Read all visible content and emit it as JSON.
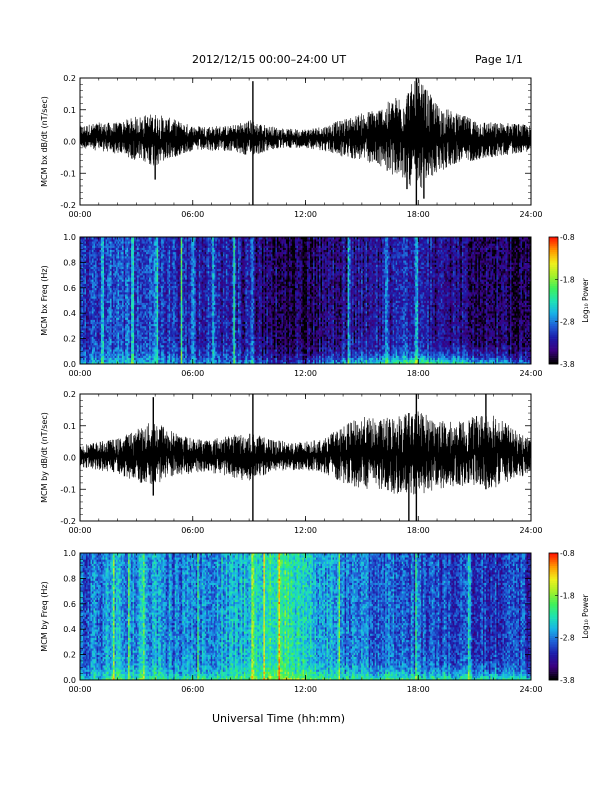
{
  "header": {
    "title": "2012/12/15  00:00–24:00 UT",
    "page": "Page 1/1"
  },
  "colors": {
    "trace": "#000000",
    "axes": "#000000",
    "background": "#ffffff",
    "spectrogram_floor": "#000000",
    "spectrogram_palette": [
      "#000000",
      "#3b007f",
      "#1d1aa8",
      "#1f5fd6",
      "#18b3e8",
      "#1fe3b3",
      "#3ff05a",
      "#a6f02a",
      "#f0f01c",
      "#ff9a00",
      "#ff1a00"
    ]
  },
  "chart_data": [
    {
      "type": "line",
      "ylabel": "MCM bx dB/dt (nT/sec)",
      "xlim": [
        0,
        24
      ],
      "ylim": [
        -0.2,
        0.2
      ],
      "x_ticks": [
        "00:00",
        "06:00",
        "12:00",
        "18:00",
        "24:00"
      ],
      "y_ticks": [
        "-0.2",
        "-0.1",
        "0.0",
        "0.1",
        "0.2"
      ],
      "envelope": {
        "x": [
          0,
          1,
          2,
          3,
          4,
          5,
          6,
          7,
          8,
          9,
          10,
          11,
          12,
          13,
          14,
          15,
          16,
          17,
          18,
          19,
          20,
          21,
          22,
          23,
          24
        ],
        "min": [
          -0.02,
          -0.03,
          -0.04,
          -0.06,
          -0.08,
          -0.05,
          -0.03,
          -0.03,
          -0.03,
          -0.05,
          -0.03,
          -0.02,
          -0.02,
          -0.03,
          -0.05,
          -0.06,
          -0.08,
          -0.12,
          -0.16,
          -0.1,
          -0.07,
          -0.06,
          -0.05,
          -0.04,
          -0.03
        ],
        "max": [
          0.05,
          0.06,
          0.06,
          0.08,
          0.09,
          0.07,
          0.05,
          0.05,
          0.05,
          0.07,
          0.05,
          0.04,
          0.04,
          0.05,
          0.07,
          0.09,
          0.11,
          0.15,
          0.2,
          0.12,
          0.09,
          0.07,
          0.06,
          0.06,
          0.05
        ]
      },
      "spikes": [
        {
          "x": 4.0,
          "min": -0.12,
          "max": 0.07
        },
        {
          "x": 9.2,
          "min": -0.2,
          "max": 0.19
        },
        {
          "x": 17.4,
          "min": -0.15,
          "max": 0.12
        },
        {
          "x": 17.9,
          "min": -0.2,
          "max": 0.21
        },
        {
          "x": 18.3,
          "min": -0.18,
          "max": 0.15
        }
      ]
    },
    {
      "type": "heatmap",
      "ylabel": "MCM bx Freq (Hz)",
      "colorbar_label": "Log₁₀ Power",
      "colorbar_ticks": [
        "-0.8",
        "-1.8",
        "-2.8",
        "-3.8"
      ],
      "colorbar_range": [
        -3.8,
        -0.8
      ],
      "xlim": [
        0,
        24
      ],
      "ylim": [
        0,
        1.0
      ],
      "x_ticks": [
        "00:00",
        "06:00",
        "12:00",
        "18:00",
        "24:00"
      ],
      "y_ticks": [
        "0.0",
        "0.2",
        "0.4",
        "0.6",
        "0.8",
        "1.0"
      ],
      "hours": [
        0,
        1,
        2,
        3,
        4,
        5,
        6,
        7,
        8,
        9,
        10,
        11,
        12,
        13,
        14,
        15,
        16,
        17,
        18,
        19,
        20,
        21,
        22,
        23,
        24
      ],
      "base_level": [
        -3.1,
        -3.1,
        -3.0,
        -3.0,
        -3.0,
        -3.1,
        -3.2,
        -3.2,
        -3.2,
        -3.3,
        -3.5,
        -3.6,
        -3.6,
        -3.5,
        -3.4,
        -3.3,
        -3.3,
        -3.2,
        -3.1,
        -3.3,
        -3.4,
        -3.5,
        -3.5,
        -3.6,
        -3.6
      ],
      "low_freq_boost": [
        0.5,
        0.6,
        0.6,
        0.6,
        0.6,
        0.5,
        0.5,
        0.5,
        0.5,
        0.6,
        0.6,
        0.6,
        0.7,
        0.8,
        0.9,
        1.0,
        1.1,
        1.2,
        1.3,
        1.3,
        1.3,
        1.3,
        1.2,
        1.0,
        0.9
      ],
      "bright_stripes_hours": [
        1.2,
        2.8,
        4.1,
        5.4,
        6.0,
        7.1,
        8.2,
        9.2,
        14.3,
        16.3,
        17.9
      ]
    },
    {
      "type": "line",
      "ylabel": "MCM by dB/dt (nT/sec)",
      "xlim": [
        0,
        24
      ],
      "ylim": [
        -0.2,
        0.2
      ],
      "x_ticks": [
        "00:00",
        "06:00",
        "12:00",
        "18:00",
        "24:00"
      ],
      "y_ticks": [
        "-0.2",
        "-0.1",
        "0.0",
        "0.1",
        "0.2"
      ],
      "envelope": {
        "x": [
          0,
          1,
          2,
          3,
          4,
          5,
          6,
          7,
          8,
          9,
          10,
          11,
          12,
          13,
          14,
          15,
          16,
          17,
          18,
          19,
          20,
          21,
          22,
          23,
          24
        ],
        "min": [
          -0.03,
          -0.04,
          -0.05,
          -0.08,
          -0.09,
          -0.06,
          -0.05,
          -0.05,
          -0.06,
          -0.08,
          -0.05,
          -0.04,
          -0.04,
          -0.05,
          -0.08,
          -0.1,
          -0.1,
          -0.12,
          -0.12,
          -0.1,
          -0.09,
          -0.09,
          -0.1,
          -0.07,
          -0.05
        ],
        "max": [
          0.04,
          0.05,
          0.06,
          0.09,
          0.12,
          0.08,
          0.06,
          0.06,
          0.07,
          0.08,
          0.06,
          0.05,
          0.05,
          0.06,
          0.1,
          0.13,
          0.12,
          0.14,
          0.15,
          0.12,
          0.11,
          0.13,
          0.15,
          0.09,
          0.06
        ]
      },
      "spikes": [
        {
          "x": 3.9,
          "min": -0.12,
          "max": 0.19
        },
        {
          "x": 9.2,
          "min": -0.2,
          "max": 0.21
        },
        {
          "x": 17.5,
          "min": -0.22,
          "max": 0.14
        },
        {
          "x": 17.9,
          "min": -0.2,
          "max": 0.2
        },
        {
          "x": 21.6,
          "min": -0.1,
          "max": 0.2
        }
      ]
    },
    {
      "type": "heatmap",
      "ylabel": "MCM by Freq (Hz)",
      "colorbar_label": "Log₁₀ Power",
      "colorbar_ticks": [
        "-0.8",
        "-1.8",
        "-2.8",
        "-3.8"
      ],
      "colorbar_range": [
        -3.8,
        -0.8
      ],
      "xlim": [
        0,
        24
      ],
      "ylim": [
        0,
        1.0
      ],
      "x_ticks": [
        "00:00",
        "06:00",
        "12:00",
        "18:00",
        "24:00"
      ],
      "y_ticks": [
        "0.0",
        "0.2",
        "0.4",
        "0.6",
        "0.8",
        "1.0"
      ],
      "hours": [
        0,
        1,
        2,
        3,
        4,
        5,
        6,
        7,
        8,
        9,
        10,
        11,
        12,
        13,
        14,
        15,
        16,
        17,
        18,
        19,
        20,
        21,
        22,
        23,
        24
      ],
      "base_level": [
        -2.9,
        -2.8,
        -2.7,
        -2.7,
        -2.7,
        -2.8,
        -2.8,
        -2.7,
        -2.6,
        -2.5,
        -2.3,
        -2.2,
        -2.5,
        -2.7,
        -2.8,
        -2.8,
        -2.9,
        -2.9,
        -3.0,
        -3.0,
        -3.0,
        -3.1,
        -3.1,
        -3.1,
        -3.1
      ],
      "low_freq_boost": [
        0.5,
        0.6,
        0.7,
        0.6,
        0.6,
        0.6,
        0.6,
        0.6,
        0.6,
        0.6,
        0.6,
        0.6,
        0.6,
        0.7,
        0.7,
        0.8,
        0.8,
        0.9,
        0.9,
        0.9,
        0.9,
        1.0,
        1.0,
        0.9,
        0.8
      ],
      "bright_stripes_hours": [
        1.8,
        2.6,
        3.4,
        6.3,
        9.2,
        9.8,
        10.6,
        13.8,
        17.9,
        20.7
      ]
    }
  ],
  "xlabel": "Universal Time (hh:mm)"
}
